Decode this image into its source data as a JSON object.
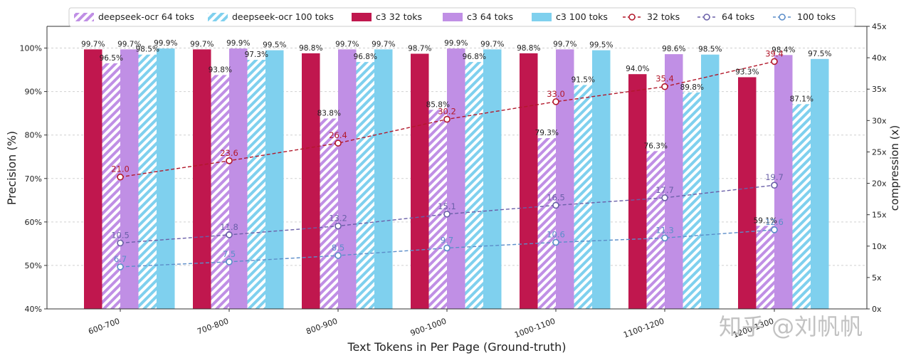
{
  "chart_data": {
    "type": "bar",
    "categories": [
      "600-700",
      "700-800",
      "800-900",
      "900-1000",
      "1000-1100",
      "1100-1200",
      "1200-1300"
    ],
    "xlabel": "Text Tokens in Per Page (Ground-truth)",
    "ylabel": "Precision (%)",
    "y2label": "compression (x)",
    "ylim": [
      40,
      105
    ],
    "y2lim": [
      0,
      45
    ],
    "yticks": [
      "40%",
      "50%",
      "60%",
      "70%",
      "80%",
      "90%",
      "100%"
    ],
    "y2ticks": [
      "0x",
      "5x",
      "10x",
      "15x",
      "20x",
      "25x",
      "30x",
      "35x",
      "40x",
      "45x"
    ],
    "grid": true,
    "legend_position": "top",
    "bar_series": [
      {
        "name": "c3 32 toks",
        "color": "#C0174E",
        "hatch": false,
        "values": [
          99.7,
          99.7,
          98.8,
          98.7,
          98.8,
          94.0,
          93.3
        ]
      },
      {
        "name": "deepseek-ocr 64 toks",
        "color": "#C08FE5",
        "hatch": true,
        "values": [
          96.5,
          93.8,
          83.8,
          85.8,
          79.3,
          76.3,
          59.1
        ]
      },
      {
        "name": "c3 64 toks",
        "color": "#C08FE5",
        "hatch": false,
        "values": [
          99.7,
          99.9,
          99.7,
          99.9,
          99.7,
          98.6,
          98.4
        ]
      },
      {
        "name": "deepseek-ocr 100 toks",
        "color": "#7FD0EE",
        "hatch": true,
        "values": [
          98.5,
          97.3,
          96.8,
          96.8,
          91.5,
          89.8,
          87.1
        ]
      },
      {
        "name": "c3 100 toks",
        "color": "#7FD0EE",
        "hatch": false,
        "values": [
          99.9,
          99.5,
          99.7,
          99.7,
          99.5,
          98.5,
          97.5
        ]
      }
    ],
    "line_series": [
      {
        "name": "32 toks",
        "color": "#B2182B",
        "values": [
          21.0,
          23.6,
          26.4,
          30.2,
          33.0,
          35.4,
          39.4
        ]
      },
      {
        "name": "64 toks",
        "color": "#6A5FA8",
        "values": [
          10.5,
          11.8,
          13.2,
          15.1,
          16.5,
          17.7,
          19.7
        ]
      },
      {
        "name": "100 toks",
        "color": "#5B8DC9",
        "values": [
          6.7,
          7.5,
          8.5,
          9.7,
          10.6,
          11.3,
          12.6
        ]
      }
    ],
    "legend_order": [
      "deepseek-ocr 64 toks",
      "deepseek-ocr 100 toks",
      "c3 32 toks",
      "c3 64 toks",
      "c3 100 toks",
      "32 toks",
      "64 toks",
      "100 toks"
    ]
  },
  "watermark": "知乎 @刘帆帆"
}
